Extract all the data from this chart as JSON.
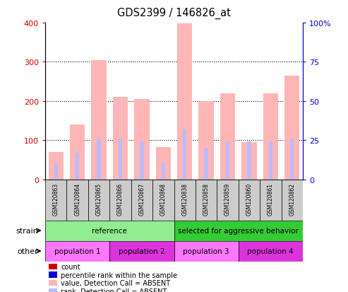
{
  "title": "GDS2399 / 146826_at",
  "samples": [
    "GSM120863",
    "GSM120864",
    "GSM120865",
    "GSM120866",
    "GSM120867",
    "GSM120868",
    "GSM120838",
    "GSM120858",
    "GSM120859",
    "GSM120860",
    "GSM120861",
    "GSM120862"
  ],
  "absent_values": [
    70,
    140,
    305,
    210,
    205,
    82,
    398,
    200,
    220,
    95,
    220,
    265
  ],
  "absent_ranks": [
    10,
    17,
    26,
    26,
    24,
    10,
    32,
    20,
    24,
    24,
    24,
    26
  ],
  "strain_groups": [
    {
      "label": "reference",
      "start": 0,
      "end": 6,
      "color": "#90EE90"
    },
    {
      "label": "selected for aggressive behavior",
      "start": 6,
      "end": 12,
      "color": "#33CC33"
    }
  ],
  "other_groups": [
    {
      "label": "population 1",
      "start": 0,
      "end": 3,
      "color": "#FF77FF"
    },
    {
      "label": "population 2",
      "start": 3,
      "end": 6,
      "color": "#DD33DD"
    },
    {
      "label": "population 3",
      "start": 6,
      "end": 9,
      "color": "#FF77FF"
    },
    {
      "label": "population 4",
      "start": 9,
      "end": 12,
      "color": "#DD33DD"
    }
  ],
  "ylim_left": [
    0,
    400
  ],
  "ylim_right": [
    0,
    100
  ],
  "yticks_left": [
    0,
    100,
    200,
    300,
    400
  ],
  "yticks_right": [
    0,
    25,
    50,
    75,
    100
  ],
  "yticklabels_right": [
    "0",
    "25",
    "50",
    "75",
    "100%"
  ],
  "left_axis_color": "#CC0000",
  "right_axis_color": "#0000CC",
  "absent_bar_color": "#FFB6B6",
  "absent_rank_color": "#BBBBFF",
  "grid_color": "#000000",
  "sample_bg_color": "#CCCCCC",
  "legend_items": [
    {
      "color": "#CC0000",
      "label": "count"
    },
    {
      "color": "#0000CC",
      "label": "percentile rank within the sample"
    },
    {
      "color": "#FFB6B6",
      "label": "value, Detection Call = ABSENT"
    },
    {
      "color": "#BBBBFF",
      "label": "rank, Detection Call = ABSENT"
    }
  ]
}
